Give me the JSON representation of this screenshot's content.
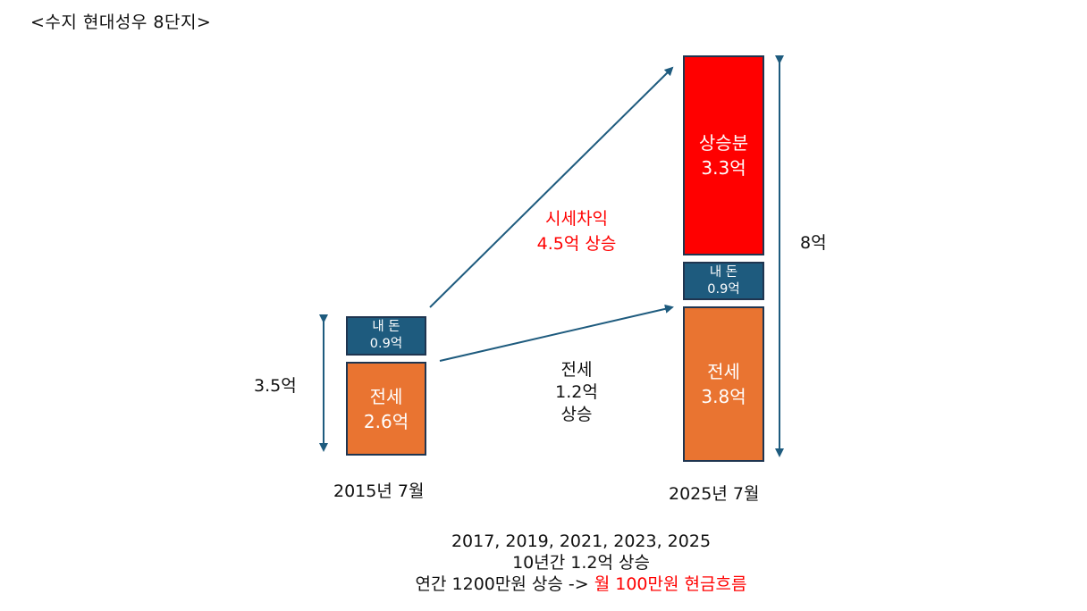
{
  "title": "<수지 현대성우 8단지>",
  "left": {
    "total": "3.5억",
    "date": "2015년 7월",
    "mine": {
      "l1": "내 돈",
      "l2": "0.9억"
    },
    "jeonse": {
      "l1": "전세",
      "l2": "2.6억"
    }
  },
  "right": {
    "total": "8억",
    "date": "2025년 7월",
    "gain": {
      "l1": "상승분",
      "l2": "3.3억"
    },
    "mine": {
      "l1": "내 돈",
      "l2": "0.9억"
    },
    "jeonse": {
      "l1": "전세",
      "l2": "3.8억"
    }
  },
  "price_gain": {
    "l1": "시세차익",
    "l2": "4.5억 상승"
  },
  "jeonse_rise": {
    "l1": "전세",
    "l2": "1.2억",
    "l3": "상승"
  },
  "bottom": {
    "years": "2017, 2019, 2021, 2023, 2025",
    "decade": "10년간 1.2억 상승",
    "annual": "연간 1200만원 상승 ->",
    "monthly": "월 100만원 현금흐름"
  },
  "colors": {
    "teal": "#1e5b7e",
    "orange": "#e97431",
    "red": "#ff0000",
    "arrow": "#1e5b7e"
  }
}
